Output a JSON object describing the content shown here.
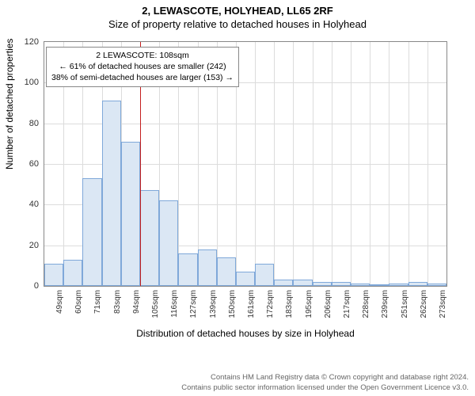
{
  "title_line1": "2, LEWASCOTE, HOLYHEAD, LL65 2RF",
  "title_line2": "Size of property relative to detached houses in Holyhead",
  "ylabel": "Number of detached properties",
  "xlabel": "Distribution of detached houses by size in Holyhead",
  "footer_line1": "Contains HM Land Registry data © Crown copyright and database right 2024.",
  "footer_line2": "Contains public sector information licensed under the Open Government Licence v3.0.",
  "chart": {
    "type": "histogram",
    "background_color": "#ffffff",
    "grid_color": "#dcdcdc",
    "border_color": "#888888",
    "bar_fill": "#dbe7f4",
    "bar_border": "#7fa8d9",
    "marker_color": "#c41e1e",
    "ylim": [
      0,
      120
    ],
    "ytick_step": 20,
    "yticks": [
      0,
      20,
      40,
      60,
      80,
      100,
      120
    ],
    "x_categories": [
      "49sqm",
      "60sqm",
      "71sqm",
      "83sqm",
      "94sqm",
      "105sqm",
      "116sqm",
      "127sqm",
      "139sqm",
      "150sqm",
      "161sqm",
      "172sqm",
      "183sqm",
      "195sqm",
      "206sqm",
      "217sqm",
      "228sqm",
      "239sqm",
      "251sqm",
      "262sqm",
      "273sqm"
    ],
    "values": [
      11,
      13,
      53,
      91,
      71,
      47,
      42,
      16,
      18,
      14,
      7,
      11,
      3,
      3,
      2,
      2,
      1,
      0.5,
      1,
      2,
      1
    ],
    "marker_at_category_index": 5,
    "callout": {
      "line1": "2 LEWASCOTE: 108sqm",
      "line2": "← 61% of detached houses are smaller (242)",
      "line3": "38% of semi-detached houses are larger (153) →"
    }
  }
}
